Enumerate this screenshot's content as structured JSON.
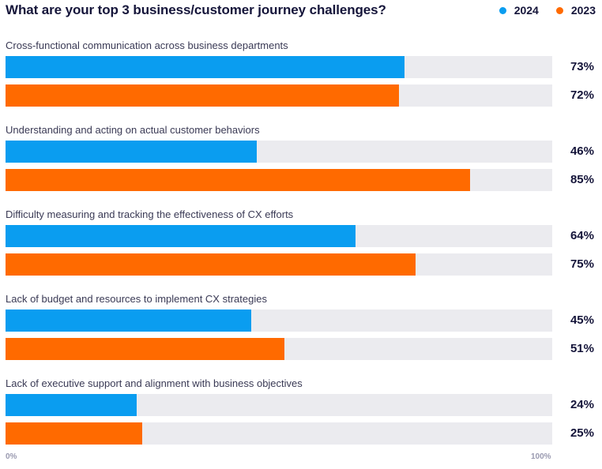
{
  "chart_data": {
    "type": "bar",
    "orientation": "horizontal",
    "title": "What are your top 3 business/customer journey challenges?",
    "categories": [
      "Cross-functional communication across business departments",
      "Understanding and acting on actual customer behaviors",
      "Difficulty measuring and tracking the effectiveness of CX efforts",
      "Lack of budget and resources to implement CX strategies",
      "Lack of executive support and alignment with business objectives"
    ],
    "series": [
      {
        "name": "2024",
        "color": "#0a9df0",
        "values": [
          73,
          46,
          64,
          45,
          24
        ],
        "labels": [
          "73%",
          "46%",
          "64%",
          "45%",
          "24%"
        ]
      },
      {
        "name": "2023",
        "color": "#ff6a00",
        "values": [
          72,
          85,
          75,
          51,
          25
        ],
        "labels": [
          "72%",
          "85%",
          "75%",
          "51%",
          "25%"
        ]
      }
    ],
    "xlim": [
      0,
      100
    ],
    "axis_labels": {
      "min": "0%",
      "max": "100%"
    },
    "legend_position": "top-right"
  }
}
